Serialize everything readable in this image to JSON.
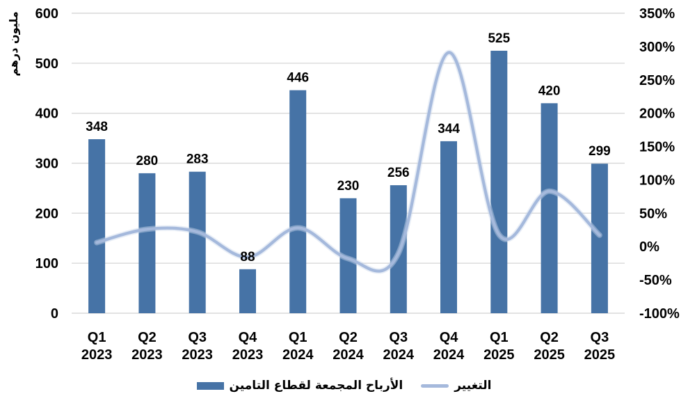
{
  "chart_data": {
    "type": "bar",
    "combo": "bar+line",
    "categories": [
      [
        "Q1",
        "2023"
      ],
      [
        "Q2",
        "2023"
      ],
      [
        "Q3",
        "2023"
      ],
      [
        "Q4",
        "2023"
      ],
      [
        "Q1",
        "2024"
      ],
      [
        "Q2",
        "2024"
      ],
      [
        "Q3",
        "2024"
      ],
      [
        "Q4",
        "2024"
      ],
      [
        "Q1",
        "2025"
      ],
      [
        "Q2",
        "2025"
      ],
      [
        "Q3",
        "2025"
      ]
    ],
    "series": [
      {
        "name": "الأرباح المجمعة لقطاع التامين",
        "type": "bar",
        "axis": "left",
        "values": [
          348,
          280,
          283,
          88,
          446,
          230,
          256,
          344,
          525,
          420,
          299
        ],
        "color": "#4673A6"
      },
      {
        "name": "التغيير",
        "type": "line",
        "axis": "right",
        "smooth": true,
        "values_percent": [
          6,
          26,
          22,
          -16,
          28,
          -18,
          -10,
          291,
          18,
          83,
          17
        ],
        "color": "#A5B9DC"
      }
    ],
    "left_axis": {
      "title": "مليون درهم",
      "min": 0,
      "max": 600,
      "step": 100,
      "tick_labels": [
        "0",
        "100",
        "200",
        "300",
        "400",
        "500",
        "600"
      ]
    },
    "right_axis": {
      "min": -100,
      "max": 350,
      "step": 50,
      "tick_labels": [
        "-100%",
        "-50%",
        "0%",
        "50%",
        "100%",
        "150%",
        "200%",
        "250%",
        "300%",
        "350%"
      ]
    },
    "grid": true,
    "legend_position": "bottom",
    "colors": {
      "bar": "#4673A6",
      "line": "#A5B9DC",
      "line_halo": "#C9D6EC",
      "grid": "#D9D9D9",
      "text": "#000000",
      "background": "#FFFFFF"
    }
  },
  "legend": {
    "items": [
      {
        "label": "الأرباح المجمعة لقطاع التامين",
        "type": "bar"
      },
      {
        "label": "التغيير",
        "type": "line"
      }
    ]
  }
}
